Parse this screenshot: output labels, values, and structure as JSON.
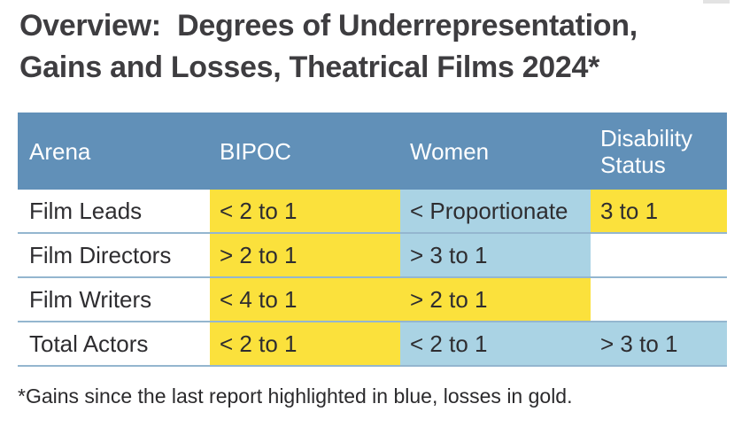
{
  "title": {
    "line1": "Overview:  Degrees of Underrepresentation,",
    "line2": "Gains and Losses, Theatrical Films 2024*"
  },
  "table": {
    "columns": [
      {
        "label": "Arena"
      },
      {
        "label": "BIPOC"
      },
      {
        "label": "Women"
      },
      {
        "label": "Disability Status"
      }
    ],
    "rows": [
      {
        "arena": "Film Leads",
        "cells": [
          {
            "text": "< 2 to 1",
            "highlight": "gold"
          },
          {
            "text": "< Proportionate",
            "highlight": "blue"
          },
          {
            "text": "3 to 1",
            "highlight": "gold"
          }
        ]
      },
      {
        "arena": "Film Directors",
        "cells": [
          {
            "text": "> 2 to 1",
            "highlight": "gold"
          },
          {
            "text": "> 3 to 1",
            "highlight": "blue"
          },
          {
            "text": "",
            "highlight": "none"
          }
        ]
      },
      {
        "arena": "Film Writers",
        "cells": [
          {
            "text": "< 4 to 1",
            "highlight": "gold"
          },
          {
            "text": "> 2 to 1",
            "highlight": "gold"
          },
          {
            "text": "",
            "highlight": "none"
          }
        ]
      },
      {
        "arena": "Total Actors",
        "cells": [
          {
            "text": "< 2 to 1",
            "highlight": "gold"
          },
          {
            "text": "< 2 to 1",
            "highlight": "blue"
          },
          {
            "text": "> 3 to 1",
            "highlight": "blue"
          }
        ]
      }
    ]
  },
  "footnote": {
    "text": "*Gains since the last report highlighted in blue, losses in gold."
  },
  "colors": {
    "background": "#ffffff",
    "header_bg": "#6190b8",
    "header_text": "#ffffff",
    "highlight_gold": "#fbe13c",
    "highlight_blue": "#aad3e4",
    "divider": "#94b6cf",
    "title_text": "#3e3d40",
    "cell_text": "#2e2d30",
    "footnote_text": "#2b2a2c"
  }
}
